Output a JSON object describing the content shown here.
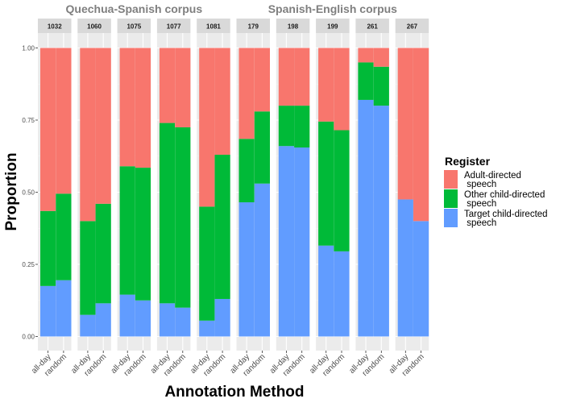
{
  "chart_data": {
    "type": "bar",
    "stacked": true,
    "ylabel": "Proportion",
    "xlabel": "Annotation Method",
    "ylim": [
      0,
      1
    ],
    "yticks": [
      0,
      0.25,
      0.5,
      0.75,
      1
    ],
    "ytick_labels": [
      "0.00",
      "0.25",
      "0.50",
      "0.75",
      "1.00"
    ],
    "categories": [
      "all-day",
      "random"
    ],
    "grid": true,
    "legend": {
      "title": "Register",
      "placement": "right",
      "entries": [
        {
          "lines": [
            "Adult-directed",
            " speech"
          ],
          "color": "#F8766D"
        },
        {
          "lines": [
            "Other child-directed",
            " speech"
          ],
          "color": "#00BA38"
        },
        {
          "lines": [
            "Target child-directed",
            " speech"
          ],
          "color": "#619CFF"
        }
      ]
    },
    "groups": [
      {
        "title": "Quechua-Spanish corpus",
        "panels": [
          "1032",
          "1060",
          "1075",
          "1077",
          "1081"
        ]
      },
      {
        "title": "Spanish-English corpus",
        "panels": [
          "179",
          "198",
          "199",
          "261",
          "267"
        ]
      }
    ],
    "panels": [
      {
        "id": "1032",
        "bars": [
          {
            "method": "all-day",
            "target": 0.175,
            "other": 0.26,
            "adult": 0.565
          },
          {
            "method": "random",
            "target": 0.195,
            "other": 0.3,
            "adult": 0.505
          }
        ]
      },
      {
        "id": "1060",
        "bars": [
          {
            "method": "all-day",
            "target": 0.075,
            "other": 0.325,
            "adult": 0.6
          },
          {
            "method": "random",
            "target": 0.115,
            "other": 0.345,
            "adult": 0.54
          }
        ]
      },
      {
        "id": "1075",
        "bars": [
          {
            "method": "all-day",
            "target": 0.145,
            "other": 0.445,
            "adult": 0.41
          },
          {
            "method": "random",
            "target": 0.125,
            "other": 0.46,
            "adult": 0.415
          }
        ]
      },
      {
        "id": "1077",
        "bars": [
          {
            "method": "all-day",
            "target": 0.115,
            "other": 0.625,
            "adult": 0.26
          },
          {
            "method": "random",
            "target": 0.1,
            "other": 0.625,
            "adult": 0.275
          }
        ]
      },
      {
        "id": "1081",
        "bars": [
          {
            "method": "all-day",
            "target": 0.055,
            "other": 0.395,
            "adult": 0.55
          },
          {
            "method": "random",
            "target": 0.13,
            "other": 0.5,
            "adult": 0.37
          }
        ]
      },
      {
        "id": "179",
        "bars": [
          {
            "method": "all-day",
            "target": 0.465,
            "other": 0.22,
            "adult": 0.315
          },
          {
            "method": "random",
            "target": 0.53,
            "other": 0.25,
            "adult": 0.22
          }
        ]
      },
      {
        "id": "198",
        "bars": [
          {
            "method": "all-day",
            "target": 0.66,
            "other": 0.14,
            "adult": 0.2
          },
          {
            "method": "random",
            "target": 0.655,
            "other": 0.145,
            "adult": 0.2
          }
        ]
      },
      {
        "id": "199",
        "bars": [
          {
            "method": "all-day",
            "target": 0.315,
            "other": 0.43,
            "adult": 0.255
          },
          {
            "method": "random",
            "target": 0.295,
            "other": 0.42,
            "adult": 0.285
          }
        ]
      },
      {
        "id": "261",
        "bars": [
          {
            "method": "all-day",
            "target": 0.82,
            "other": 0.13,
            "adult": 0.05
          },
          {
            "method": "random",
            "target": 0.8,
            "other": 0.135,
            "adult": 0.065
          }
        ]
      },
      {
        "id": "267",
        "bars": [
          {
            "method": "all-day",
            "target": 0.475,
            "other": 0.0,
            "adult": 0.525
          },
          {
            "method": "random",
            "target": 0.4,
            "other": 0.0,
            "adult": 0.6
          }
        ]
      }
    ]
  }
}
